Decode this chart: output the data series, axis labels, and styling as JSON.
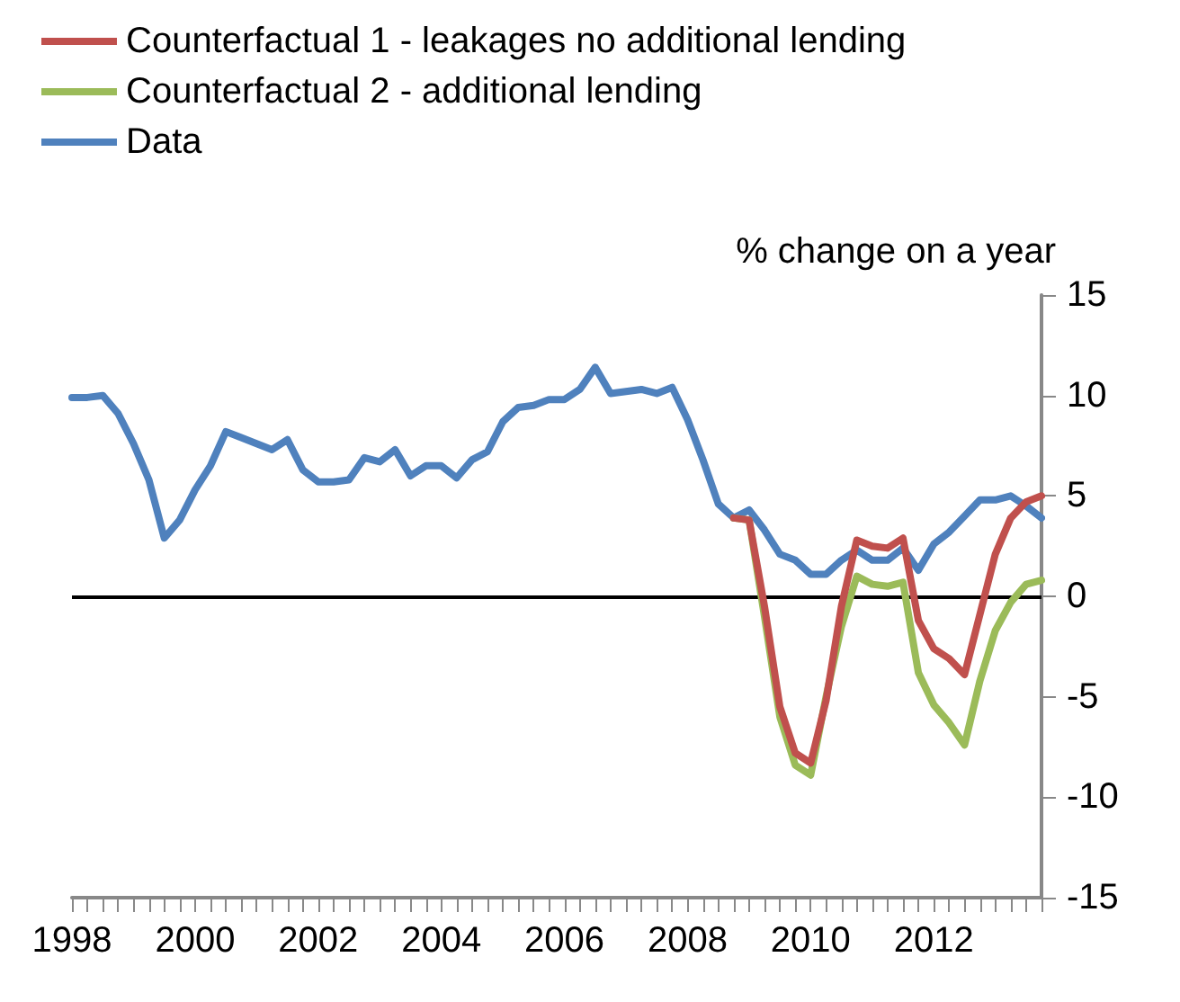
{
  "chart_data": {
    "type": "line",
    "ylabel": "% change on a year",
    "categories": [
      "1998",
      null,
      null,
      null,
      null,
      null,
      null,
      null,
      "2000",
      null,
      null,
      null,
      null,
      null,
      null,
      null,
      "2002",
      null,
      null,
      null,
      null,
      null,
      null,
      null,
      "2004",
      null,
      null,
      null,
      null,
      null,
      null,
      null,
      "2006",
      null,
      null,
      null,
      null,
      null,
      null,
      null,
      "2008",
      null,
      null,
      null,
      null,
      null,
      null,
      null,
      "2010",
      null,
      null,
      null,
      null,
      null,
      null,
      null,
      "2012",
      null,
      null,
      null,
      null,
      null,
      null,
      null
    ],
    "series": [
      {
        "name": "Counterfactual 1 - leakages no additional lending",
        "color": "#c0504d",
        "values": [
          null,
          null,
          null,
          null,
          null,
          null,
          null,
          null,
          null,
          null,
          null,
          null,
          null,
          null,
          null,
          null,
          null,
          null,
          null,
          null,
          null,
          null,
          null,
          null,
          null,
          null,
          null,
          null,
          null,
          null,
          null,
          null,
          null,
          null,
          null,
          null,
          null,
          null,
          null,
          null,
          null,
          null,
          null,
          3.9,
          3.8,
          -0.5,
          -5.5,
          -7.8,
          -8.3,
          -5.2,
          -0.5,
          2.8,
          2.5,
          2.4,
          2.9,
          -1.2,
          -2.6,
          -3.1,
          -3.9,
          -0.9,
          2.1,
          3.9,
          4.7,
          5.0
        ]
      },
      {
        "name": "Counterfactual 2 - additional lending",
        "color": "#9bbb59",
        "values": [
          null,
          null,
          null,
          null,
          null,
          null,
          null,
          null,
          null,
          null,
          null,
          null,
          null,
          null,
          null,
          null,
          null,
          null,
          null,
          null,
          null,
          null,
          null,
          null,
          null,
          null,
          null,
          null,
          null,
          null,
          null,
          null,
          null,
          null,
          null,
          null,
          null,
          null,
          null,
          null,
          null,
          null,
          null,
          3.9,
          3.8,
          -1.0,
          -6.0,
          -8.4,
          -8.9,
          -5.0,
          -1.5,
          1.0,
          0.6,
          0.5,
          0.7,
          -3.8,
          -5.4,
          -6.3,
          -7.4,
          -4.2,
          -1.7,
          -0.3,
          0.6,
          0.8
        ]
      },
      {
        "name": "Data",
        "color": "#4f81bd",
        "values": [
          9.9,
          9.9,
          10.0,
          9.1,
          7.6,
          5.8,
          2.9,
          3.8,
          5.3,
          6.5,
          8.2,
          7.9,
          7.6,
          7.3,
          7.8,
          6.3,
          5.7,
          5.7,
          5.8,
          6.9,
          6.7,
          7.3,
          6.0,
          6.5,
          6.5,
          5.9,
          6.8,
          7.2,
          8.7,
          9.4,
          9.5,
          9.8,
          9.8,
          10.3,
          11.4,
          10.1,
          10.2,
          10.3,
          10.1,
          10.4,
          8.8,
          6.8,
          4.6,
          3.9,
          4.3,
          3.3,
          2.1,
          1.8,
          1.1,
          1.1,
          1.8,
          2.3,
          1.8,
          1.8,
          2.4,
          1.3,
          2.6,
          3.2,
          4.0,
          4.8,
          4.8,
          5.0,
          4.5,
          3.9
        ]
      }
    ],
    "ylim": [
      -15,
      15
    ],
    "yticks": [
      -15,
      -10,
      -5,
      0,
      5,
      10,
      15
    ],
    "ref_lines": [
      {
        "axis": "y",
        "value": 0,
        "color": "#000000"
      }
    ],
    "legend": "top left",
    "grid": false,
    "marker": "none",
    "line_style": "solid"
  }
}
